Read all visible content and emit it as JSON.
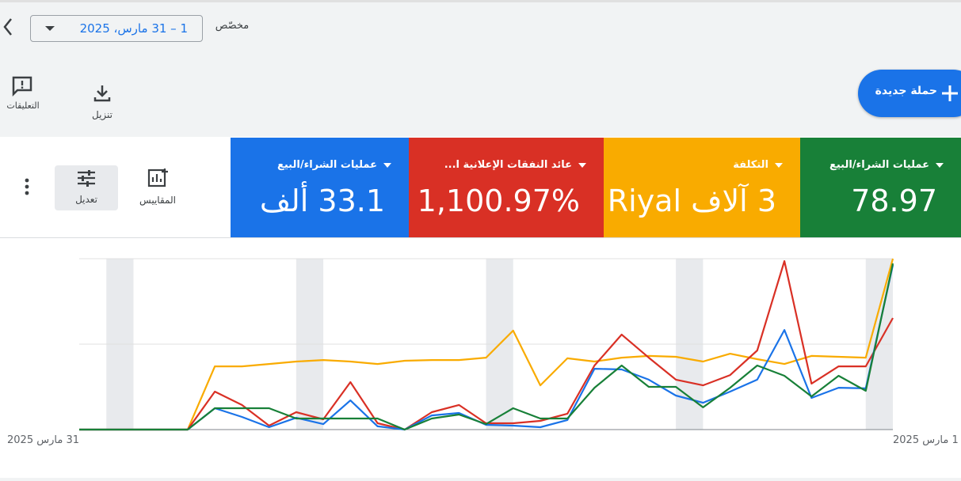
{
  "toolbar": {
    "date_label": "مخصّص",
    "date_range": "1 – 31 مارس، 2025"
  },
  "actions": [
    {
      "label": "التعليقات"
    },
    {
      "label": "تنزيل"
    }
  ],
  "new_campaign": "حملة جديدة",
  "metrics_controls": {
    "metrics": "المقاييس",
    "adjust": "تعديل"
  },
  "cards": [
    {
      "label": "عمليات الشراء/البيع",
      "value": "78.97",
      "color": "#188038"
    },
    {
      "label": "التكلفة",
      "value": "3 آلاف Riyal",
      "color": "#f9ab00"
    },
    {
      "label": "عائد النفقات الإعلانية ا...",
      "value": "1,100.97%",
      "color": "#d93025"
    },
    {
      "label": "عمليات الشراء/البيع",
      "value": "33.1 ألف",
      "color": "#1a73e8"
    }
  ],
  "chart_data": {
    "type": "line",
    "categories": [
      "31 مارس 2025",
      null,
      null,
      null,
      null,
      null,
      null,
      null,
      null,
      null,
      null,
      null,
      null,
      null,
      null,
      null,
      null,
      null,
      null,
      null,
      null,
      null,
      null,
      null,
      null,
      null,
      null,
      null,
      null,
      null,
      "1 مارس 2025"
    ],
    "ylim": [
      0,
      100
    ],
    "yticks": [
      0,
      50,
      100
    ],
    "grid": true,
    "series": [
      {
        "color": "#f9ab00",
        "values": [
          0,
          0,
          0,
          0,
          0,
          37,
          37,
          38.4,
          39.8,
          40.7,
          39.8,
          38.4,
          40.3,
          40.7,
          40.7,
          42.1,
          57.9,
          25.9,
          41.7,
          39.8,
          42.1,
          43.1,
          42.6,
          39.8,
          44.4,
          41.2,
          38.4,
          43.1,
          42.6,
          42.1,
          100
        ]
      },
      {
        "color": "#d93025",
        "values": [
          0,
          0,
          0,
          0,
          0,
          22.2,
          14.4,
          2.3,
          10.2,
          6,
          27.8,
          3.7,
          0,
          10.2,
          14.4,
          3.7,
          3.7,
          5.1,
          9.3,
          37.5,
          55.6,
          42.1,
          29.2,
          25.9,
          31.9,
          46.3,
          98.6,
          26.9,
          37,
          37,
          65.3
        ]
      },
      {
        "color": "#1a73e8",
        "values": [
          0,
          0,
          0,
          0,
          0,
          12.5,
          7.4,
          1.4,
          6.9,
          3.2,
          17.1,
          1.9,
          0,
          8.3,
          9.7,
          2.8,
          2.3,
          1.4,
          5.6,
          35.6,
          35.2,
          29.2,
          19.9,
          15.7,
          22.2,
          29.2,
          58.3,
          18.5,
          24.5,
          24.1,
          96.3
        ]
      },
      {
        "color": "#188038",
        "values": [
          0,
          0,
          0,
          0,
          0,
          12.5,
          12.5,
          12.5,
          6.5,
          6.5,
          6.5,
          6.5,
          0,
          6.5,
          8.8,
          3.2,
          12.5,
          6.5,
          6.5,
          24.5,
          37.5,
          25,
          25,
          13,
          24.5,
          37.5,
          31.5,
          19.4,
          31.5,
          22.7,
          97.2
        ]
      }
    ]
  }
}
